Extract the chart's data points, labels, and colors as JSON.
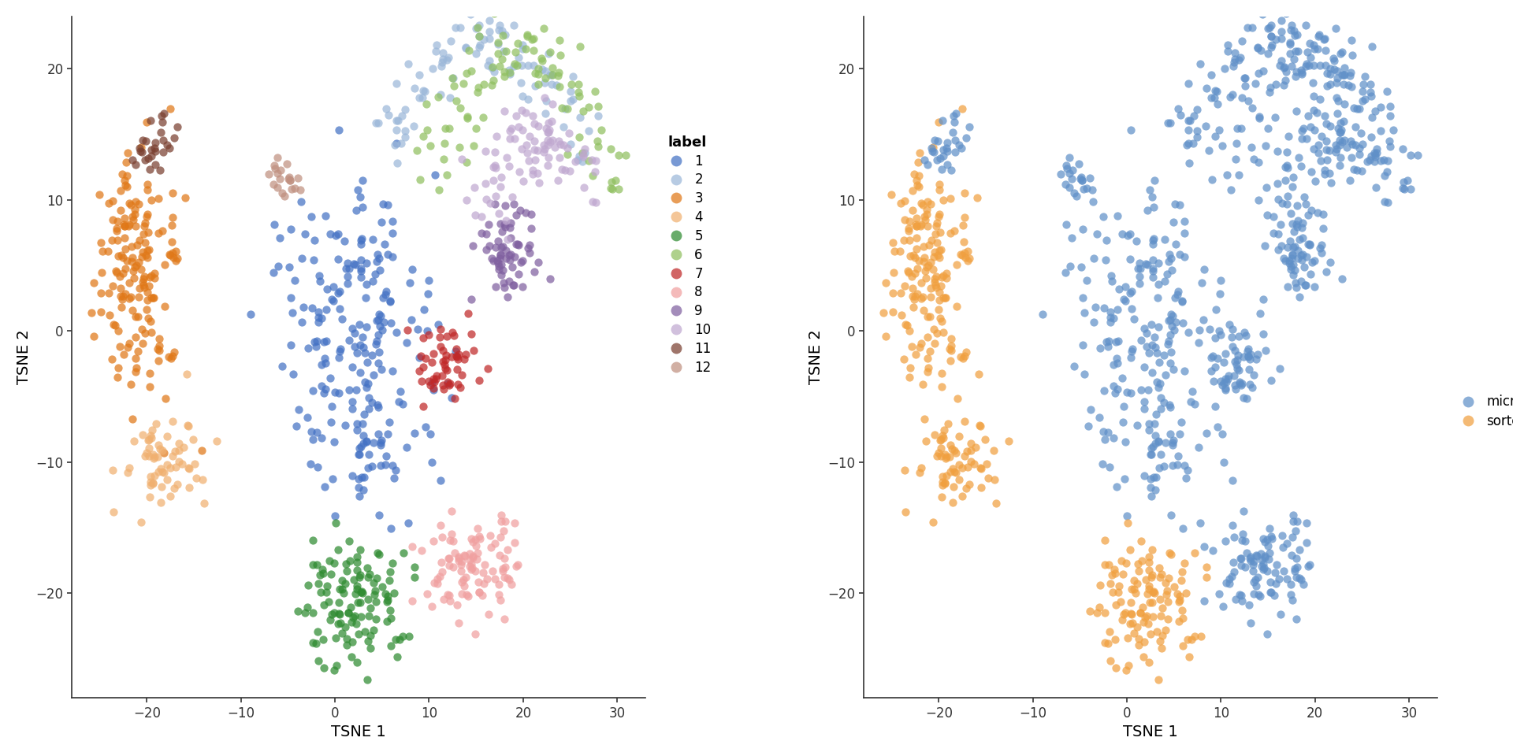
{
  "label_colors": {
    "1": "#4472C4",
    "2": "#9BB7D9",
    "3": "#E07818",
    "4": "#F0B070",
    "5": "#2E8B30",
    "6": "#90C060",
    "7": "#C02828",
    "8": "#F0A0A0",
    "9": "#8060A0",
    "10": "#C0A8D0",
    "11": "#7A4030",
    "12": "#C09080"
  },
  "protocol_colors": {
    "micro": "#6090C8",
    "sorted": "#F0A040"
  },
  "sorted_clusters": [
    "3",
    "4",
    "5"
  ],
  "xlim": [
    -28,
    33
  ],
  "ylim": [
    -28,
    24
  ],
  "xticks": [
    -20,
    -10,
    0,
    10,
    20,
    30
  ],
  "yticks": [
    -20,
    -10,
    0,
    10,
    20
  ],
  "xlabel": "TSNE 1",
  "ylabel": "TSNE 2",
  "legend1_title": "label",
  "marker_size": 55,
  "alpha": 0.72,
  "font_size": 14,
  "tick_size": 12
}
